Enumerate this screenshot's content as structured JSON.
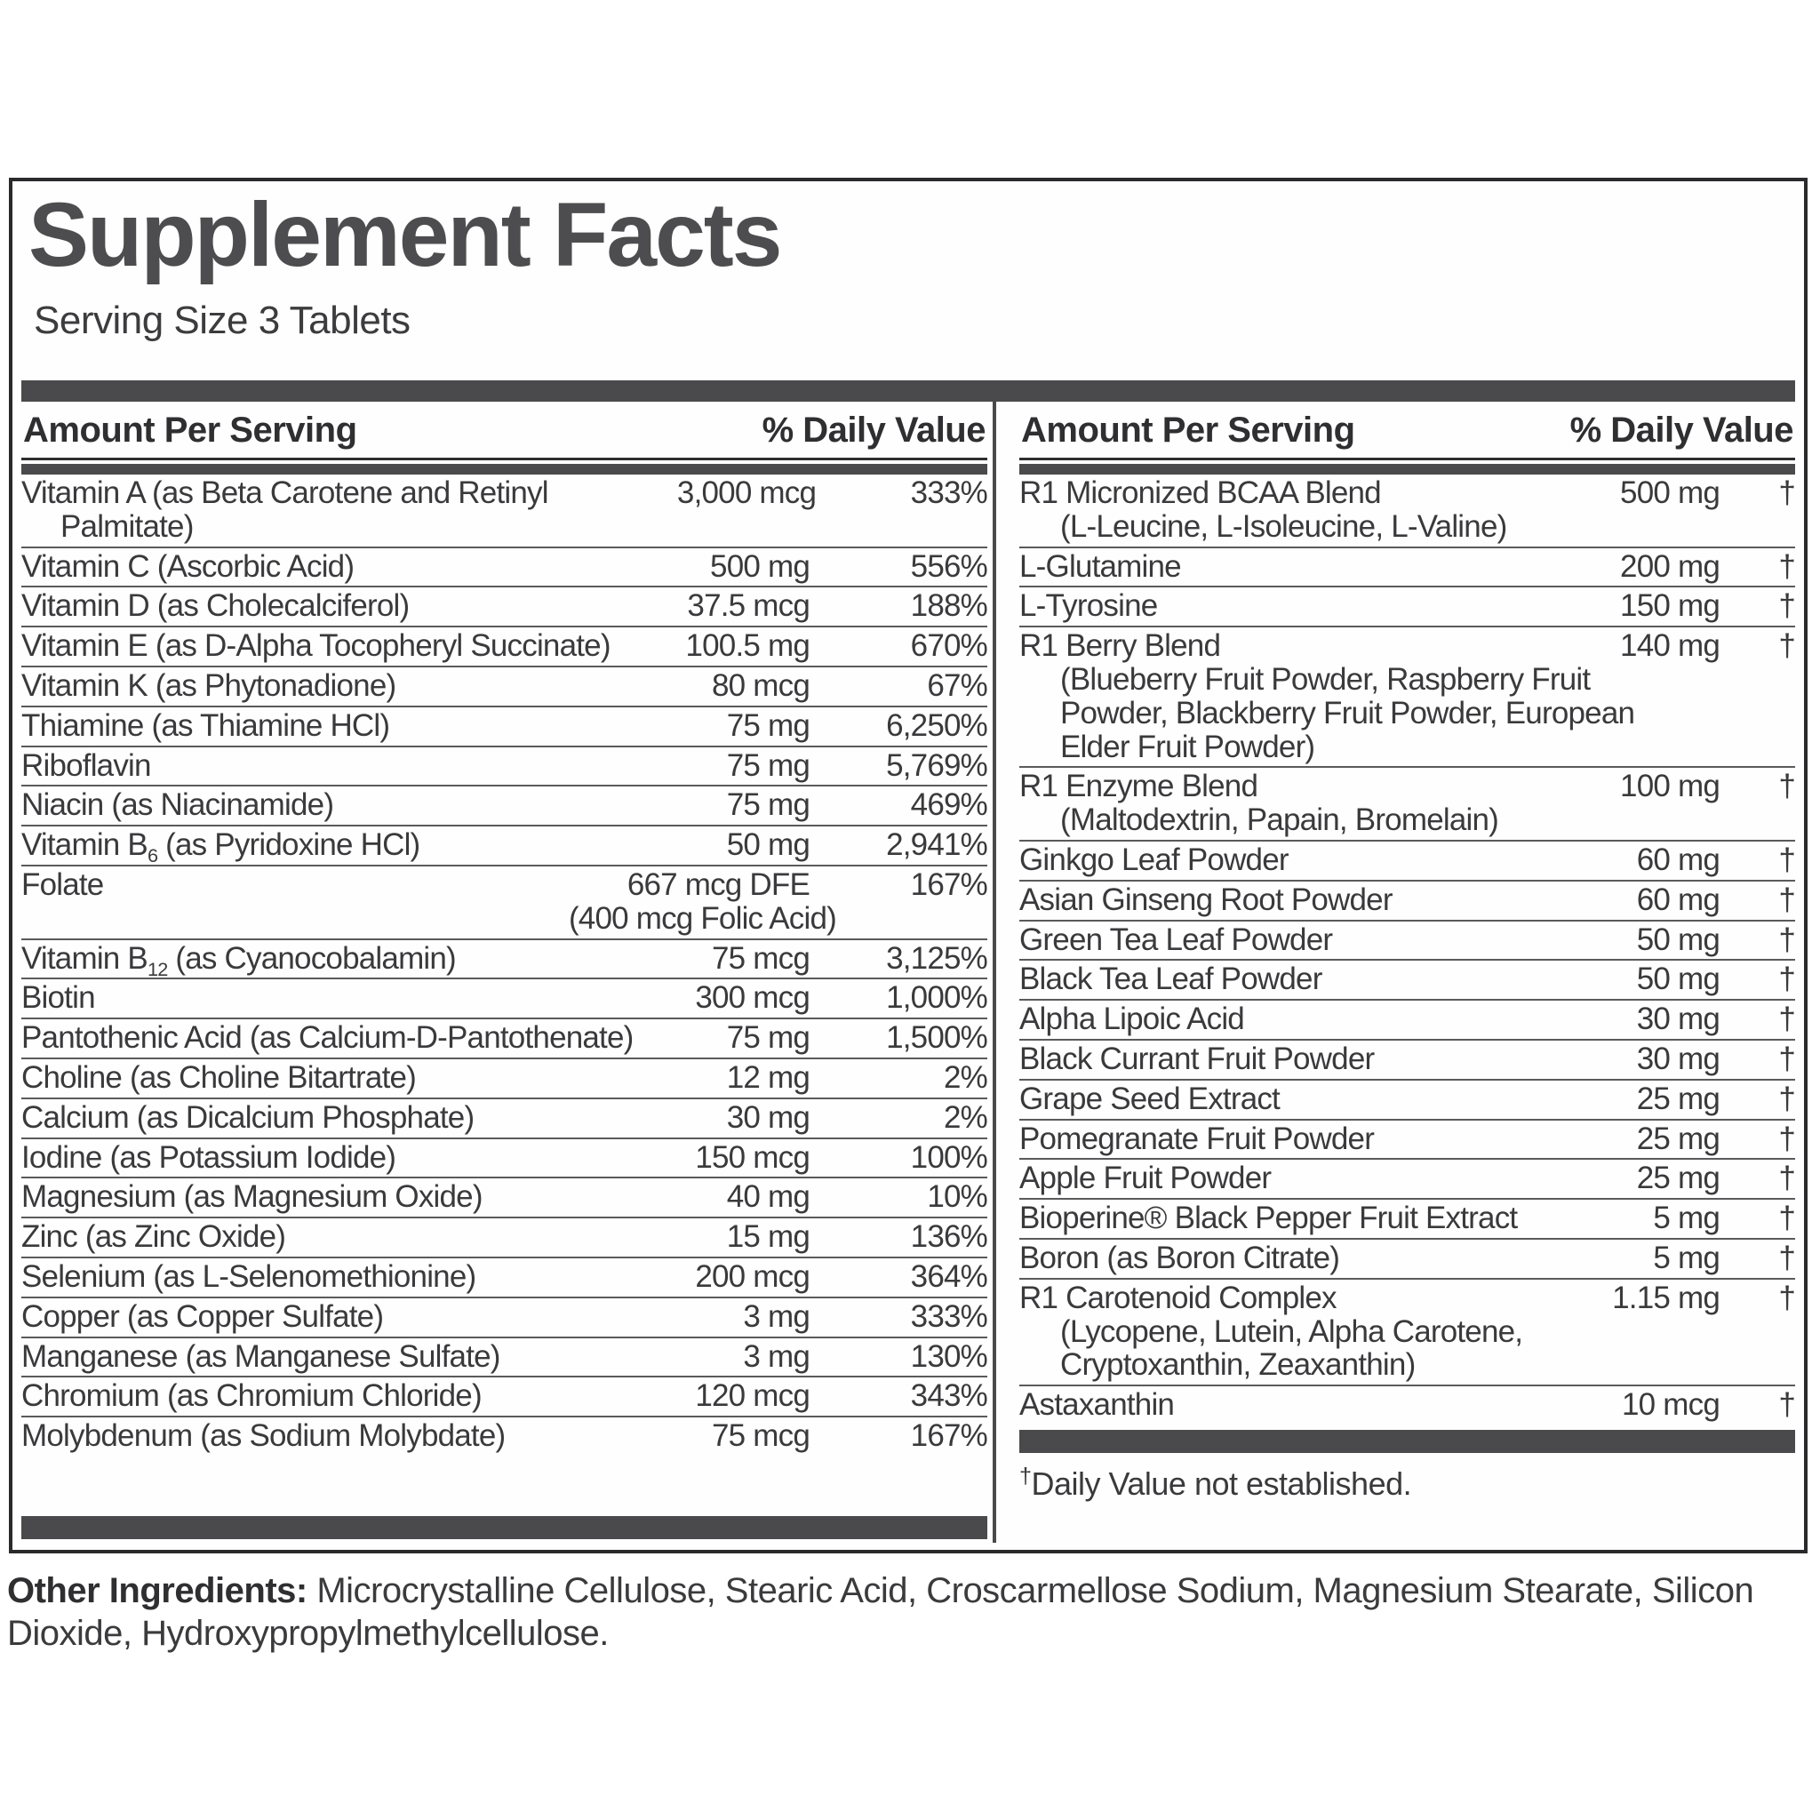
{
  "title": "Supplement Facts",
  "serving_size": "Serving Size 3 Tablets",
  "colors": {
    "bar": "#4a4a4c",
    "border": "#2a2a2c",
    "row_line": "#5a5a5c",
    "text": "#3a3a3c"
  },
  "columns": [
    {
      "header": {
        "amount_label": "Amount Per Serving",
        "dv_label": "% Daily Value"
      },
      "rows": [
        {
          "name_pre": "Vitamin A (as Beta Carotene and Retinyl Palmitate)",
          "amount": "3,000 mcg",
          "dv": "333%"
        },
        {
          "name_pre": "Vitamin C (Ascorbic Acid)",
          "amount": "500 mg",
          "dv": "556%"
        },
        {
          "name_pre": "Vitamin D (as Cholecalciferol)",
          "amount": "37.5 mcg",
          "dv": "188%"
        },
        {
          "name_pre": "Vitamin E (as D-Alpha Tocopheryl Succinate)",
          "amount": "100.5 mg",
          "dv": "670%"
        },
        {
          "name_pre": "Vitamin K (as Phytonadione)",
          "amount": "80 mcg",
          "dv": "67%"
        },
        {
          "name_pre": "Thiamine (as Thiamine HCl)",
          "amount": "75 mg",
          "dv": "6,250%"
        },
        {
          "name_pre": "Riboflavin",
          "amount": "75 mg",
          "dv": "5,769%"
        },
        {
          "name_pre": "Niacin (as Niacinamide)",
          "amount": "75 mg",
          "dv": "469%"
        },
        {
          "name_pre": "Vitamin B",
          "subscript": "6",
          "name_post": " (as Pyridoxine HCl)",
          "amount": "50 mg",
          "dv": "2,941%"
        },
        {
          "name_pre": "Folate",
          "amount": "667 mcg DFE",
          "amount_sub": "(400 mcg Folic Acid)",
          "dv": "167%"
        },
        {
          "name_pre": "Vitamin B",
          "subscript": "12",
          "name_post": " (as Cyanocobalamin)",
          "amount": "75 mcg",
          "dv": "3,125%"
        },
        {
          "name_pre": "Biotin",
          "amount": "300 mcg",
          "dv": "1,000%"
        },
        {
          "name_pre": "Pantothenic Acid (as Calcium-D-Pantothenate)",
          "amount": "75 mg",
          "dv": "1,500%"
        },
        {
          "name_pre": "Choline (as Choline Bitartrate)",
          "amount": "12 mg",
          "dv": "2%"
        },
        {
          "name_pre": "Calcium (as Dicalcium Phosphate)",
          "amount": "30 mg",
          "dv": "2%"
        },
        {
          "name_pre": "Iodine (as Potassium Iodide)",
          "amount": "150 mcg",
          "dv": "100%"
        },
        {
          "name_pre": "Magnesium (as Magnesium Oxide)",
          "amount": "40 mg",
          "dv": "10%"
        },
        {
          "name_pre": "Zinc (as Zinc Oxide)",
          "amount": "15 mg",
          "dv": "136%"
        },
        {
          "name_pre": "Selenium (as L-Selenomethionine)",
          "amount": "200 mcg",
          "dv": "364%"
        },
        {
          "name_pre": "Copper (as Copper Sulfate)",
          "amount": "3 mg",
          "dv": "333%"
        },
        {
          "name_pre": "Manganese (as Manganese Sulfate)",
          "amount": "3 mg",
          "dv": "130%"
        },
        {
          "name_pre": "Chromium (as Chromium Chloride)",
          "amount": "120 mcg",
          "dv": "343%"
        },
        {
          "name_pre": "Molybdenum (as Sodium Molybdate)",
          "amount": "75 mcg",
          "dv": "167%"
        }
      ],
      "footnote": ""
    },
    {
      "header": {
        "amount_label": "Amount Per Serving",
        "dv_label": "% Daily Value"
      },
      "rows": [
        {
          "name_pre": "R1 Micronized BCAA Blend",
          "sub": "(L-Leucine, L-Isoleucine, L-Valine)",
          "amount": "500 mg",
          "dv": "†"
        },
        {
          "name_pre": "L-Glutamine",
          "amount": "200 mg",
          "dv": "†"
        },
        {
          "name_pre": "L-Tyrosine",
          "amount": "150 mg",
          "dv": "†"
        },
        {
          "name_pre": "R1 Berry Blend",
          "sub": "(Blueberry Fruit Powder, Raspberry Fruit Powder, Blackberry Fruit Powder, European Elder Fruit Powder)",
          "amount": "140 mg",
          "dv": "†"
        },
        {
          "name_pre": "R1 Enzyme Blend",
          "sub": "(Maltodextrin, Papain, Bromelain)",
          "amount": "100 mg",
          "dv": "†"
        },
        {
          "name_pre": "Ginkgo Leaf Powder",
          "amount": "60 mg",
          "dv": "†"
        },
        {
          "name_pre": "Asian Ginseng Root Powder",
          "amount": "60 mg",
          "dv": "†"
        },
        {
          "name_pre": "Green Tea Leaf Powder",
          "amount": "50 mg",
          "dv": "†"
        },
        {
          "name_pre": "Black Tea Leaf Powder",
          "amount": "50 mg",
          "dv": "†"
        },
        {
          "name_pre": "Alpha Lipoic Acid",
          "amount": "30 mg",
          "dv": "†"
        },
        {
          "name_pre": "Black Currant Fruit Powder",
          "amount": "30 mg",
          "dv": "†"
        },
        {
          "name_pre": "Grape Seed Extract",
          "amount": "25 mg",
          "dv": "†"
        },
        {
          "name_pre": "Pomegranate Fruit Powder",
          "amount": "25 mg",
          "dv": "†"
        },
        {
          "name_pre": "Apple Fruit Powder",
          "amount": "25 mg",
          "dv": "†"
        },
        {
          "name_pre": "Bioperine® Black Pepper Fruit Extract",
          "amount": "5 mg",
          "dv": "†"
        },
        {
          "name_pre": "Boron (as Boron Citrate)",
          "amount": "5 mg",
          "dv": "†"
        },
        {
          "name_pre": "R1 Carotenoid Complex",
          "sub": "(Lycopene, Lutein, Alpha Carotene, Cryptoxanthin, Zeaxanthin)",
          "amount": "1.15 mg",
          "dv": "†"
        },
        {
          "name_pre": "Astaxanthin",
          "amount": "10 mcg",
          "dv": "†"
        }
      ],
      "footnote": "Daily Value not established."
    }
  ],
  "other_ingredients": {
    "label": "Other Ingredients:",
    "text": " Microcrystalline Cellulose, Stearic Acid, Croscarmellose Sodium, Magnesium Stearate, Silicon Dioxide, Hydroxypropylmethylcellulose."
  }
}
